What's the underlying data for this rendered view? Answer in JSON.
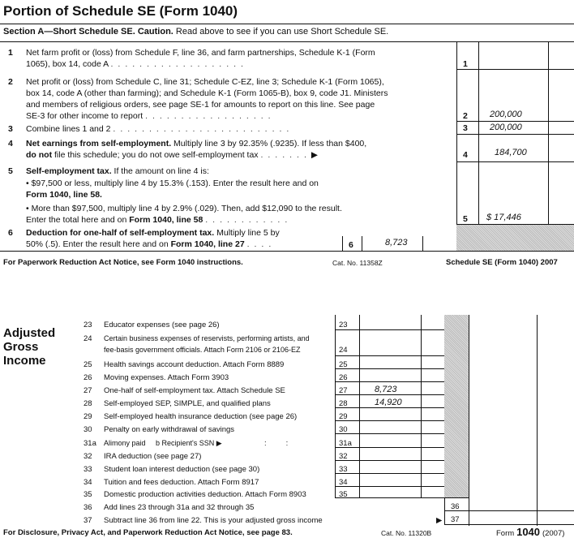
{
  "schedule_se": {
    "title": "Portion of Schedule SE (Form 1040)",
    "section_bold": "Section A—Short Schedule SE. Caution.",
    "section_rest": " Read above to see if you can use Short Schedule SE.",
    "lines": [
      {
        "n": "1",
        "t1": "Net farm profit or (loss) from Schedule F, line 36, and farm partnerships, Schedule K-1 (Form",
        "t2": "1065), box 14, code A",
        "value": ""
      },
      {
        "n": "2",
        "t1": "Net profit or (loss) from Schedule C, line 31; Schedule C-EZ, line 3; Schedule K-1 (Form 1065),",
        "t2": "box 14, code A (other than farming); and Schedule K-1 (Form 1065-B), box 9, code J1. Ministers",
        "t3": "and members of religious orders, see page SE-1 for amounts to report on this line. See page",
        "t4": "SE-3 for other income to report",
        "value": "200,000"
      },
      {
        "n": "3",
        "t1": "Combine lines 1 and 2",
        "value": "200,000"
      },
      {
        "n": "4",
        "t1b": "Net earnings from self-employment.",
        "t1": " Multiply line 3 by 92.35% (.9235). If less than $400,",
        "t2b": "do not",
        "t2": " file this schedule; you do not owe self-employment tax",
        "value": "184,700"
      },
      {
        "n": "5",
        "t1b": "Self-employment tax.",
        "t1": " If the amount on line 4 is:",
        "b1": "• $97,500 or less, multiply line 4 by 15.3% (.153). Enter the result here and on",
        "b1b": "Form 1040, line 58.",
        "b2": "• More than $97,500, multiply line 4 by 2.9% (.029). Then, add $12,090 to the result.",
        "b2a": "Enter the total here and on ",
        "b2b": "Form 1040, line 58",
        "value": "$ 17,446"
      },
      {
        "n": "6",
        "t1b": "Deduction for one-half of self-employment tax.",
        "t1": " Multiply line 5 by",
        "t2": "50% (.5). Enter the result here and on ",
        "t2b": "Form 1040, line 27",
        "value": "8,723"
      }
    ],
    "footer_left": "For Paperwork Reduction Act Notice, see Form 1040 instructions.",
    "footer_cat": "Cat. No. 11358Z",
    "footer_right": "Schedule SE (Form 1040) 2007"
  },
  "form1040": {
    "section_title": [
      "Adjusted",
      "Gross",
      "Income"
    ],
    "lines": [
      {
        "n": "23",
        "t": "Educator expenses (see page 26)",
        "value": ""
      },
      {
        "n": "24",
        "t": "Certain business expenses of reservists, performing artists, and",
        "t2": "fee-basis government officials. Attach Form 2106 or 2106-EZ",
        "value": ""
      },
      {
        "n": "25",
        "t": "Health savings account deduction. Attach Form 8889",
        "value": ""
      },
      {
        "n": "26",
        "t": "Moving expenses. Attach Form 3903",
        "value": ""
      },
      {
        "n": "27",
        "t": "One-half of self-employment tax. Attach Schedule SE",
        "value": "8,723"
      },
      {
        "n": "28",
        "t": "Self-employed SEP, SIMPLE, and qualified plans",
        "value": "14,920"
      },
      {
        "n": "29",
        "t": "Self-employed health insurance deduction (see page 26)",
        "value": ""
      },
      {
        "n": "30",
        "t": "Penalty on early withdrawal of savings",
        "value": ""
      },
      {
        "n": "31a",
        "t": "Alimony paid",
        "t2": "b Recipient's SSN ▶",
        "value": ""
      },
      {
        "n": "32",
        "t": "IRA deduction (see page 27)",
        "value": ""
      },
      {
        "n": "33",
        "t": "Student loan interest deduction (see page 30)",
        "value": ""
      },
      {
        "n": "34",
        "t": "Tuition and fees deduction. Attach Form 8917",
        "value": ""
      },
      {
        "n": "35",
        "t": "Domestic production activities deduction. Attach Form 8903",
        "value": ""
      },
      {
        "n": "36",
        "t": "Add lines 23 through 31a and 32 through 35",
        "value": ""
      },
      {
        "n": "37",
        "t": "Subtract line 36 from line 22. This is your adjusted gross income",
        "value": ""
      }
    ],
    "footer_left": "For Disclosure, Privacy Act, and Paperwork Reduction Act Notice, see page 83.",
    "footer_cat": "Cat. No. 11320B",
    "footer_form": "Form",
    "footer_num": "1040",
    "footer_year": "(2007)"
  }
}
